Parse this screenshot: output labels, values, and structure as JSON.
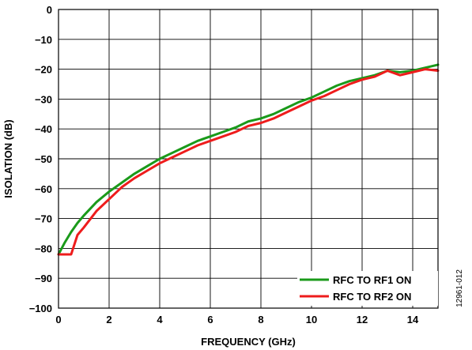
{
  "figure_id": "12961-012",
  "chart_data": {
    "type": "line",
    "title": "",
    "xlabel": "FREQUENCY (GHz)",
    "ylabel": "ISOLATION (dB)",
    "xlim": [
      0,
      15
    ],
    "ylim": [
      -100,
      0
    ],
    "grid": true,
    "legend_position": "bottom-right",
    "x_ticks": [
      0,
      2,
      4,
      6,
      8,
      10,
      12,
      14
    ],
    "x_tick_labels": [
      "0",
      "2",
      "4",
      "6",
      "8",
      "10",
      "12",
      "14"
    ],
    "y_ticks": [
      0,
      -10,
      -20,
      -30,
      -40,
      -50,
      -60,
      -70,
      -80,
      -90,
      -100
    ],
    "y_tick_labels": [
      "0",
      "−10",
      "−20",
      "−30",
      "−40",
      "−50",
      "−60",
      "−70",
      "−80",
      "−90",
      "−100"
    ],
    "series": [
      {
        "name": "RFC TO RF1 ON",
        "color": "#1a9a1a",
        "x": [
          0.0,
          0.25,
          0.5,
          0.75,
          1.0,
          1.5,
          2.0,
          2.5,
          3.0,
          3.5,
          4.0,
          4.5,
          5.0,
          5.5,
          6.0,
          6.5,
          7.0,
          7.5,
          8.0,
          8.5,
          9.0,
          9.5,
          10.0,
          10.5,
          11.0,
          11.5,
          12.0,
          12.5,
          13.0,
          13.5,
          14.0,
          14.5,
          15.0
        ],
        "y": [
          -82.0,
          -78.0,
          -74.5,
          -71.5,
          -69.0,
          -64.5,
          -61.0,
          -58.0,
          -55.0,
          -52.5,
          -50.0,
          -48.0,
          -46.0,
          -44.0,
          -42.5,
          -41.0,
          -39.5,
          -37.5,
          -36.5,
          -35.0,
          -33.0,
          -31.0,
          -29.5,
          -27.5,
          -25.5,
          -24.0,
          -23.0,
          -22.0,
          -20.5,
          -21.0,
          -20.5,
          -19.5,
          -18.5
        ]
      },
      {
        "name": "RFC TO RF2 ON",
        "color": "#ee1c1c",
        "x": [
          0.0,
          0.25,
          0.5,
          0.75,
          1.0,
          1.5,
          2.0,
          2.5,
          3.0,
          3.5,
          4.0,
          4.5,
          5.0,
          5.5,
          6.0,
          6.5,
          7.0,
          7.5,
          8.0,
          8.5,
          9.0,
          9.5,
          10.0,
          10.5,
          11.0,
          11.5,
          12.0,
          12.5,
          13.0,
          13.5,
          14.0,
          14.5,
          15.0
        ],
        "y": [
          -82.0,
          -82.0,
          -82.0,
          -75.5,
          -73.0,
          -67.5,
          -63.5,
          -59.5,
          -56.5,
          -54.0,
          -51.5,
          -49.5,
          -47.5,
          -45.5,
          -44.0,
          -42.5,
          -41.0,
          -39.0,
          -38.0,
          -36.5,
          -34.5,
          -32.5,
          -30.5,
          -29.0,
          -27.0,
          -25.0,
          -23.5,
          -22.5,
          -20.5,
          -22.0,
          -21.0,
          -20.0,
          -20.5
        ]
      }
    ]
  }
}
